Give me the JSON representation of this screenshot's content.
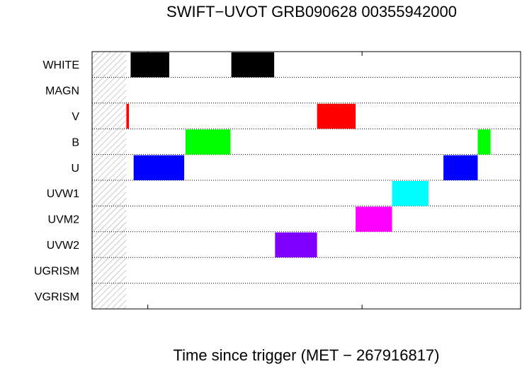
{
  "title": "SWIFT−UVOT GRB090628 00355942000",
  "xlabel": "Time since trigger (MET − 267916817)",
  "chart_data": {
    "type": "timeline",
    "title": "SWIFT−UVOT GRB090628 00355942000",
    "xlabel": "Time since trigger (MET − 267916817)",
    "xlim": [
      -130,
      870
    ],
    "x_ticks": [
      0,
      500
    ],
    "tick_labels_shown": false,
    "grid": "dotted horizontal row separators",
    "hatched_region": [
      -130,
      -50
    ],
    "filters": [
      "WHITE",
      "MAGN",
      "V",
      "B",
      "U",
      "UVW1",
      "UVM2",
      "UVW2",
      "UGRISM",
      "VGRISM"
    ],
    "exposures": [
      {
        "filter": "WHITE",
        "start": -40,
        "end": 50,
        "color": "#000000"
      },
      {
        "filter": "WHITE",
        "start": 195,
        "end": 295,
        "color": "#000000"
      },
      {
        "filter": "V",
        "start": -50,
        "end": -44,
        "color": "#ff0000"
      },
      {
        "filter": "V",
        "start": 395,
        "end": 485,
        "color": "#ff0000"
      },
      {
        "filter": "B",
        "start": 88,
        "end": 193,
        "color": "#00ff00"
      },
      {
        "filter": "B",
        "start": 770,
        "end": 800,
        "color": "#00ff00"
      },
      {
        "filter": "U",
        "start": -33,
        "end": 85,
        "color": "#0000ff"
      },
      {
        "filter": "U",
        "start": 690,
        "end": 770,
        "color": "#0000ff"
      },
      {
        "filter": "UVW1",
        "start": 570,
        "end": 655,
        "color": "#00ffff"
      },
      {
        "filter": "UVM2",
        "start": 485,
        "end": 570,
        "color": "#ff00ff"
      },
      {
        "filter": "UVW2",
        "start": 297,
        "end": 395,
        "color": "#8000ff"
      }
    ]
  }
}
